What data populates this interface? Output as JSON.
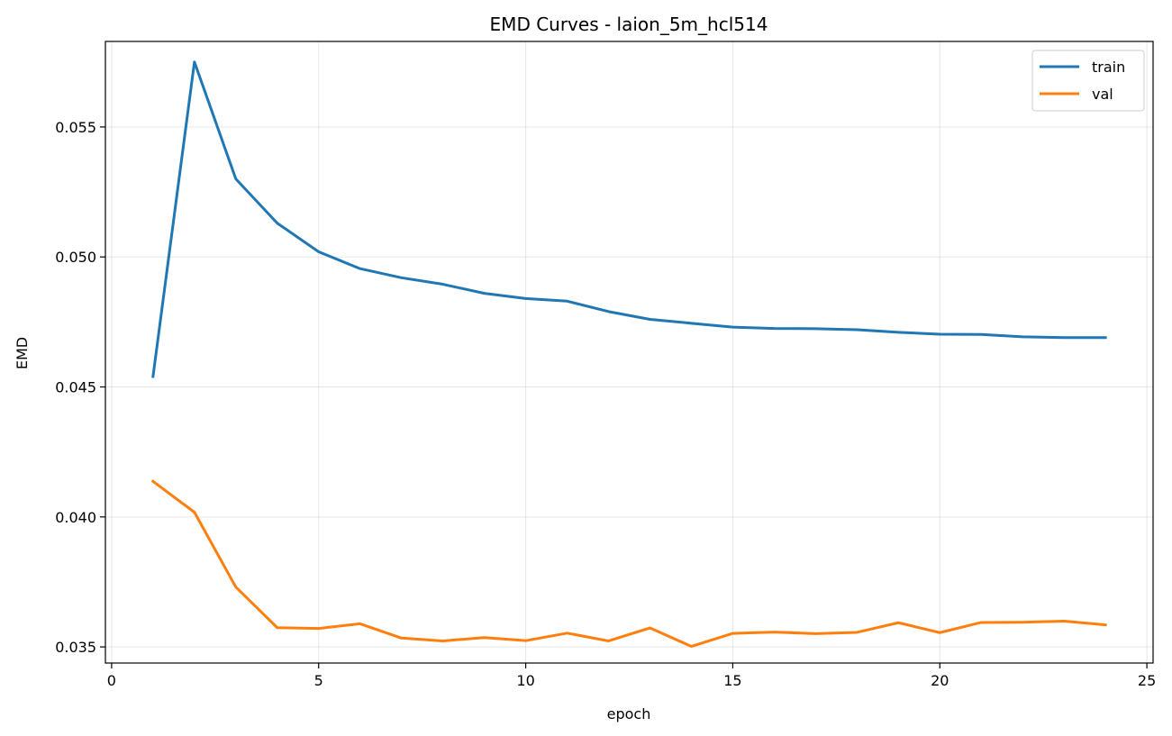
{
  "chart_data": {
    "type": "line",
    "title": "EMD Curves - laion_5m_hcl514",
    "xlabel": "epoch",
    "ylabel": "EMD",
    "xlim": [
      -0.15,
      25.15
    ],
    "ylim": [
      0.03438,
      0.05829
    ],
    "xticks": [
      0,
      5,
      10,
      15,
      20,
      25
    ],
    "xtick_labels": [
      "0",
      "5",
      "10",
      "15",
      "20",
      "25"
    ],
    "yticks": [
      0.035,
      0.04,
      0.045,
      0.05,
      0.055
    ],
    "ytick_labels": [
      "0.035",
      "0.040",
      "0.045",
      "0.050",
      "0.055"
    ],
    "grid": true,
    "legend_position": "top-right",
    "x": [
      1,
      2,
      3,
      4,
      5,
      6,
      7,
      8,
      9,
      10,
      11,
      12,
      13,
      14,
      15,
      16,
      17,
      18,
      19,
      20,
      21,
      22,
      23,
      24
    ],
    "series": [
      {
        "name": "train",
        "color": "#1f77b4",
        "values": [
          0.0454,
          0.0575,
          0.053,
          0.0513,
          0.0502,
          0.04955,
          0.0492,
          0.04895,
          0.0486,
          0.0484,
          0.0483,
          0.0479,
          0.0476,
          0.04745,
          0.0473,
          0.04725,
          0.04724,
          0.0472,
          0.0471,
          0.04703,
          0.04702,
          0.04693,
          0.0469,
          0.0469
        ]
      },
      {
        "name": "val",
        "color": "#ff7f0e",
        "values": [
          0.04137,
          0.04018,
          0.0373,
          0.03574,
          0.03571,
          0.03589,
          0.03534,
          0.03523,
          0.03536,
          0.03524,
          0.03553,
          0.03523,
          0.03573,
          0.03502,
          0.03552,
          0.03557,
          0.03551,
          0.03556,
          0.03593,
          0.03555,
          0.03594,
          0.03595,
          0.03599,
          0.03585
        ]
      }
    ]
  }
}
